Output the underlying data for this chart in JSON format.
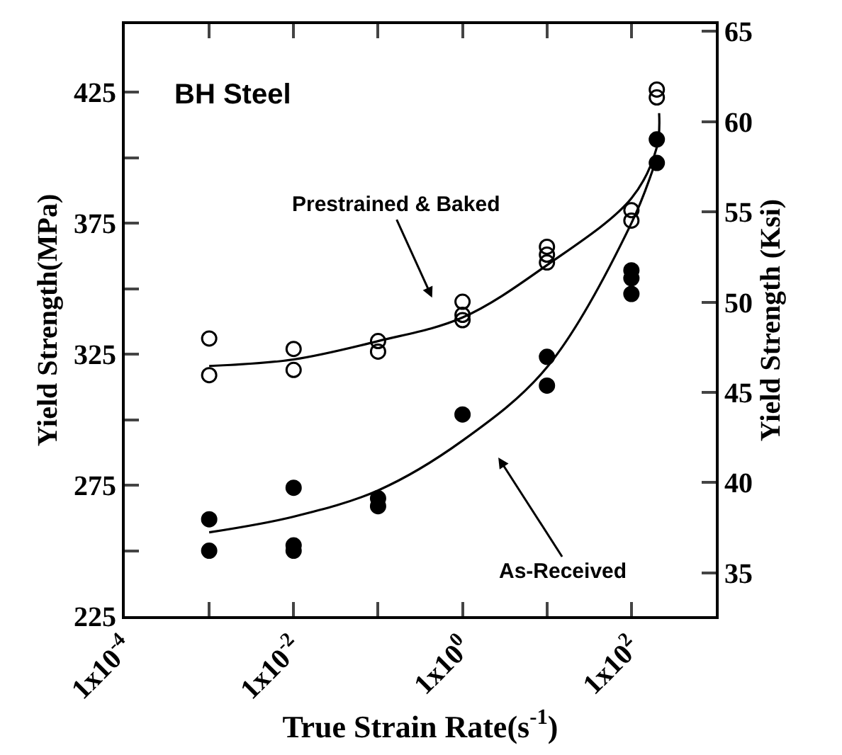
{
  "chart_data": {
    "type": "scatter",
    "xlabel": "True Strain Rate(s$^{-1}$)",
    "ylabel": "Yield Strength(MPa)",
    "y2label": "Yield Strength (Ksi)",
    "log": "x",
    "xlim": [
      0.0001,
      1000
    ],
    "xticks": [
      {
        "value": 0.0001,
        "label": "1x10$^{-4}$"
      },
      {
        "value": 0.001,
        "label": null
      },
      {
        "value": 0.01,
        "label": "1x10$^{-2}$"
      },
      {
        "value": 0.1,
        "label": null
      },
      {
        "value": 1,
        "label": "1x10$^{0}$"
      },
      {
        "value": 10,
        "label": null
      },
      {
        "value": 100,
        "label": "1x10$^{2}$"
      }
    ],
    "ylim": [
      225,
      451
    ],
    "yticks": [
      225,
      {
        "value": 250,
        "label": null
      },
      275,
      {
        "value": 300,
        "label": null
      },
      325,
      {
        "value": 350,
        "label": null
      },
      375,
      {
        "value": 400,
        "label": null
      },
      425
    ],
    "y2lim": [
      32.6,
      65.4
    ],
    "y2ticks": [
      35,
      40,
      45,
      50,
      55,
      60,
      65
    ],
    "series": [
      {
        "marker": "circle-open",
        "color": "#000000",
        "x": [
          0.001,
          0.001,
          0.01,
          0.01,
          0.1,
          0.1,
          1,
          1,
          1,
          10,
          10,
          10,
          100,
          100,
          200,
          200
        ],
        "values": [
          331,
          317,
          327,
          319,
          330,
          326,
          345,
          340,
          338,
          366,
          363,
          360,
          380,
          376,
          426,
          423
        ]
      },
      {
        "marker": "circle",
        "color": "#000000",
        "x": [
          0.001,
          0.001,
          0.01,
          0.01,
          0.01,
          0.1,
          0.1,
          1,
          10,
          10,
          100,
          100,
          100,
          200,
          200
        ],
        "values": [
          262,
          250,
          274,
          252,
          250,
          270,
          267,
          302,
          324,
          313,
          357,
          354,
          348,
          407,
          398
        ]
      },
      {
        "type": "line",
        "marker": "none",
        "color": "#000000",
        "x": [
          0.001,
          0.01,
          0.1,
          1,
          10,
          100,
          200,
          213
        ],
        "values": [
          320.5,
          323,
          330,
          339,
          359,
          384.5,
          404,
          417
        ]
      },
      {
        "type": "line",
        "marker": "none",
        "color": "#000000",
        "x": [
          0.001,
          0.01,
          0.1,
          1,
          10,
          100,
          200
        ],
        "values": [
          257,
          263,
          273,
          292,
          320,
          375,
          400
        ]
      }
    ],
    "annotations": [
      "BH Steel",
      "Prestrained & Baked",
      "As-Received"
    ]
  }
}
